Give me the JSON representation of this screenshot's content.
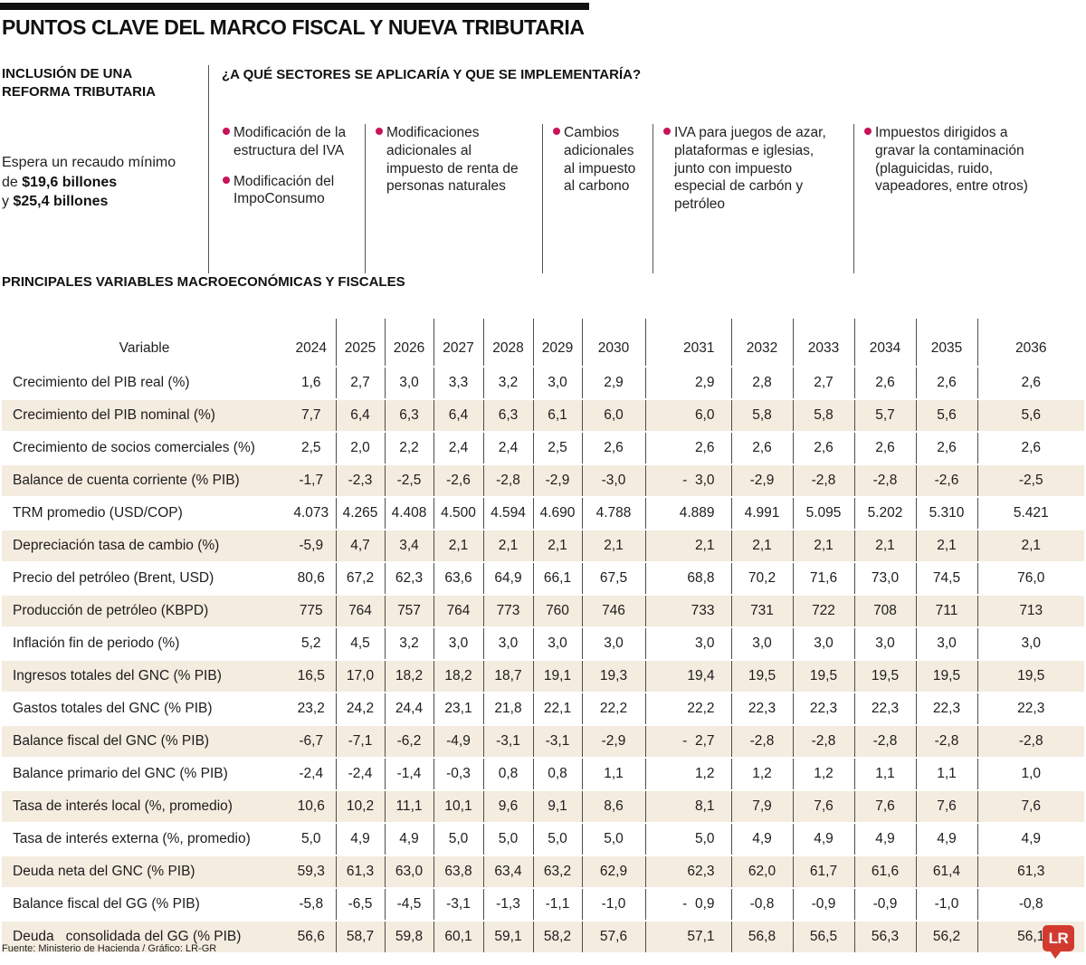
{
  "title": "PUNTOS CLAVE DEL MARCO FISCAL Y NUEVA TRIBUTARIA",
  "reform": {
    "heading": "INCLUSIÓN DE UNA REFORMA TRIBUTARIA",
    "line1": "Espera un recaudo mínimo",
    "line2_prefix": "de ",
    "line2_bold": "$19,6 billones",
    "line3_prefix": "y ",
    "line3_bold": "$25,4 billones"
  },
  "sectors": {
    "heading": "¿A QUÉ SECTORES SE APLICARÍA Y QUE SE IMPLEMENTARÍA?",
    "bullet_color": "#c9125c",
    "columns": [
      {
        "items": [
          "Modificación de la estructura del IVA",
          "Modificación del ImpoConsumo"
        ]
      },
      {
        "items": [
          "Modificaciones adicionales al impuesto de renta de personas naturales"
        ]
      },
      {
        "items": [
          "Cambios adicionales al impuesto al carbono"
        ]
      },
      {
        "items": [
          "IVA para juegos de azar, plataformas e iglesias, junto con impuesto especial de carbón y petróleo"
        ]
      },
      {
        "items": [
          "Impuestos dirigidos a gravar la contaminación (plaguicidas, ruido, vapeadores, entre otros)"
        ]
      }
    ]
  },
  "table_heading": "PRINCIPALES VARIABLES MACROECONÓMICAS Y FISCALES",
  "chart_data": {
    "type": "table",
    "title": "PRINCIPALES VARIABLES MACROECONÓMICAS Y FISCALES",
    "row_stripe_color": "#f4ecdf",
    "columns": [
      "Variable",
      "2024",
      "2025",
      "2026",
      "2027",
      "2028",
      "2029",
      "2030",
      "2031",
      "2032",
      "2033",
      "2034",
      "2035",
      "2036"
    ],
    "rows": [
      [
        "Crecimiento del PIB real (%)",
        "1,6",
        "2,7",
        "3,0",
        "3,3",
        "3,2",
        "3,0",
        "2,9",
        "2,9",
        "2,8",
        "2,7",
        "2,6",
        "2,6",
        "2,6"
      ],
      [
        "Crecimiento del PIB nominal (%)",
        "7,7",
        "6,4",
        "6,3",
        "6,4",
        "6,3",
        "6,1",
        "6,0",
        "6,0",
        "5,8",
        "5,8",
        "5,7",
        "5,6",
        "5,6"
      ],
      [
        "Crecimiento de socios comerciales (%)",
        "2,5",
        "2,0",
        "2,2",
        "2,4",
        "2,4",
        "2,5",
        "2,6",
        "2,6",
        "2,6",
        "2,6",
        "2,6",
        "2,6",
        "2,6"
      ],
      [
        "Balance de cuenta corriente (% PIB)",
        "-1,7",
        "-2,3",
        "-2,5",
        "-2,6",
        "-2,8",
        "-2,9",
        "-3,0",
        "-  3,0",
        "-2,9",
        "-2,8",
        "-2,8",
        "-2,6",
        "-2,5"
      ],
      [
        "TRM promedio (USD/COP)",
        "4.073",
        "4.265",
        "4.408",
        "4.500",
        "4.594",
        "4.690",
        "4.788",
        "4.889",
        "4.991",
        "5.095",
        "5.202",
        "5.310",
        "5.421"
      ],
      [
        "Depreciación tasa de cambio (%)",
        "-5,9",
        "4,7",
        "3,4",
        "2,1",
        "2,1",
        "2,1",
        "2,1",
        "2,1",
        "2,1",
        "2,1",
        "2,1",
        "2,1",
        "2,1"
      ],
      [
        "Precio del petróleo (Brent, USD)",
        "80,6",
        "67,2",
        "62,3",
        "63,6",
        "64,9",
        "66,1",
        "67,5",
        "68,8",
        "70,2",
        "71,6",
        "73,0",
        "74,5",
        "76,0"
      ],
      [
        "Producción de petróleo (KBPD)",
        "775",
        "764",
        "757",
        "764",
        "773",
        "760",
        "746",
        "733",
        "731",
        "722",
        "708",
        "711",
        "713"
      ],
      [
        "Inflación fin de periodo (%)",
        "5,2",
        "4,5",
        "3,2",
        "3,0",
        "3,0",
        "3,0",
        "3,0",
        "3,0",
        "3,0",
        "3,0",
        "3,0",
        "3,0",
        "3,0"
      ],
      [
        "Ingresos totales del GNC (% PIB)",
        "16,5",
        "17,0",
        "18,2",
        "18,2",
        "18,7",
        "19,1",
        "19,3",
        "19,4",
        "19,5",
        "19,5",
        "19,5",
        "19,5",
        "19,5"
      ],
      [
        "Gastos totales del GNC (% PIB)",
        "23,2",
        "24,2",
        "24,4",
        "23,1",
        "21,8",
        "22,1",
        "22,2",
        "22,2",
        "22,3",
        "22,3",
        "22,3",
        "22,3",
        "22,3"
      ],
      [
        "Balance fiscal del GNC (% PIB)",
        "-6,7",
        "-7,1",
        "-6,2",
        "-4,9",
        "-3,1",
        "-3,1",
        "-2,9",
        "-  2,7",
        "-2,8",
        "-2,8",
        "-2,8",
        "-2,8",
        "-2,8"
      ],
      [
        "Balance primario del GNC (% PIB)",
        "-2,4",
        "-2,4",
        "-1,4",
        "-0,3",
        "0,8",
        "0,8",
        "1,1",
        "1,2",
        "1,2",
        "1,2",
        "1,1",
        "1,1",
        "1,0"
      ],
      [
        "Tasa de interés local (%, promedio)",
        "10,6",
        "10,2",
        "11,1",
        "10,1",
        "9,6",
        "9,1",
        "8,6",
        "8,1",
        "7,9",
        "7,6",
        "7,6",
        "7,6",
        "7,6"
      ],
      [
        "Tasa de interés externa (%, promedio)",
        "5,0",
        "4,9",
        "4,9",
        "5,0",
        "5,0",
        "5,0",
        "5,0",
        "5,0",
        "4,9",
        "4,9",
        "4,9",
        "4,9",
        "4,9"
      ],
      [
        "Deuda neta del GNC (% PIB)",
        "59,3",
        "61,3",
        "63,0",
        "63,8",
        "63,4",
        "63,2",
        "62,9",
        "62,3",
        "62,0",
        "61,7",
        "61,6",
        "61,4",
        "61,3"
      ],
      [
        "Balance fiscal del GG (% PIB)",
        "-5,8",
        "-6,5",
        "-4,5",
        "-3,1",
        "-1,3",
        "-1,1",
        "-1,0",
        "-  0,9",
        "-0,8",
        "-0,9",
        "-0,9",
        "-1,0",
        "-0,8"
      ],
      [
        "Deuda   consolidada del GG (% PIB)",
        "56,6",
        "58,7",
        "59,8",
        "60,1",
        "59,1",
        "58,2",
        "57,6",
        "57,1",
        "56,8",
        "56,5",
        "56,3",
        "56,2",
        "56,1"
      ]
    ]
  },
  "footer": {
    "source": "Fuente: Ministerio de Hacienda / Gráfico: LR-GR",
    "logo": "LR"
  }
}
